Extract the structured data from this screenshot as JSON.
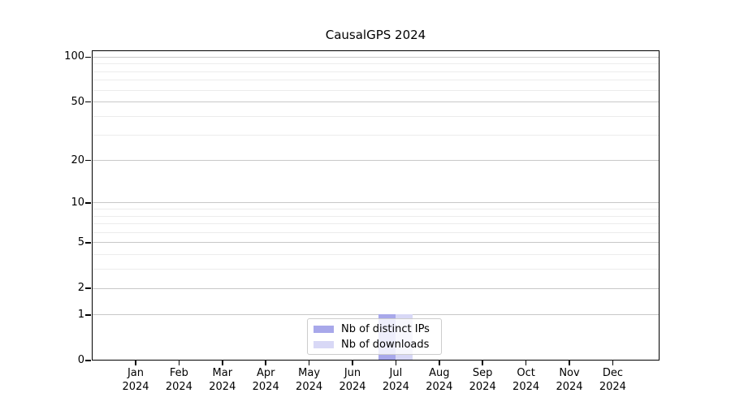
{
  "title": "CausalGPS 2024",
  "chart_data": {
    "type": "bar",
    "title": "CausalGPS 2024",
    "x_months": [
      "Jan",
      "Feb",
      "Mar",
      "Apr",
      "May",
      "Jun",
      "Jul",
      "Aug",
      "Sep",
      "Oct",
      "Nov",
      "Dec"
    ],
    "x_year": "2024",
    "series": [
      {
        "name": "Nb of distinct IPs",
        "color": "#a8a8ea",
        "values": [
          0,
          0,
          0,
          0,
          0,
          0,
          1,
          0,
          0,
          0,
          0,
          0
        ]
      },
      {
        "name": "Nb of downloads",
        "color": "#d8d8f6",
        "values": [
          0,
          0,
          0,
          0,
          0,
          0,
          1,
          0,
          0,
          0,
          0,
          0
        ]
      }
    ],
    "y_axis": {
      "scale": "log1p",
      "major_ticks": [
        0,
        1,
        2,
        5,
        10,
        20,
        50,
        100
      ],
      "minor_ticks": [
        3,
        4,
        6,
        7,
        8,
        9,
        30,
        40,
        60,
        70,
        80,
        90
      ],
      "ylim": [
        0,
        110
      ]
    },
    "legend": {
      "position": "lower center",
      "entries": [
        "Nb of distinct IPs",
        "Nb of downloads"
      ]
    },
    "grid": true
  },
  "colors": {
    "bar_distinct_ips": "#a8a8ea",
    "bar_downloads": "#d8d8f6",
    "major_grid": "#c8c8c8",
    "minor_grid": "#ececec",
    "spine": "#000000",
    "legend_border": "#cccccc"
  }
}
